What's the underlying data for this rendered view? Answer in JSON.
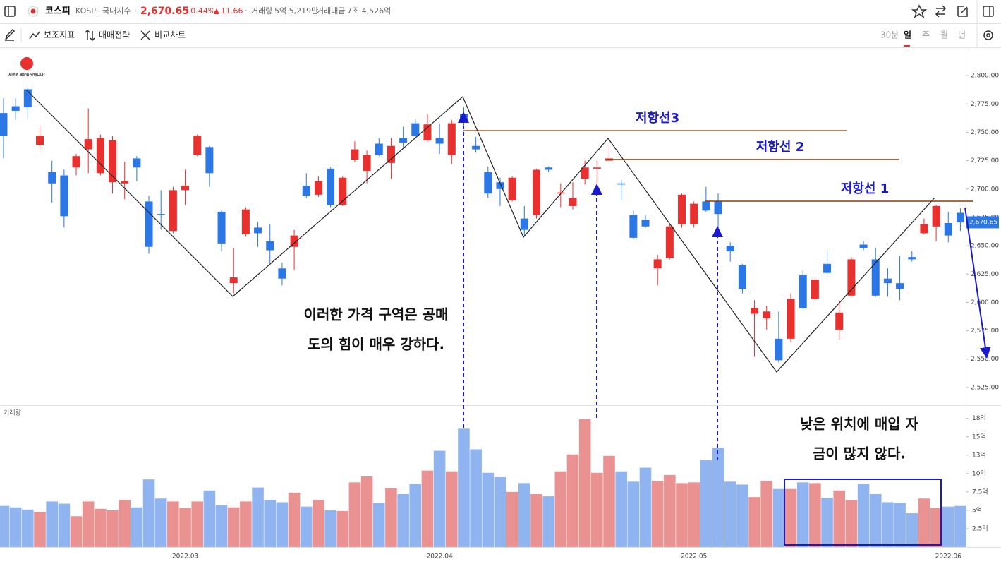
{
  "header": {
    "name": "코스피",
    "code": "KOSPI",
    "market": "국내지수",
    "price": "2,670.65",
    "change_pct": "+0.44%",
    "change": "11.66",
    "volume_label": "거래량",
    "volume": "5억 5,219만",
    "amount_label": "거래대금",
    "amount": "7조 4,526억"
  },
  "toolbar": {
    "tools": [
      "보조지표",
      "매매전략",
      "비교차트"
    ],
    "periods": [
      "30분",
      "일",
      "주",
      "월",
      "년"
    ],
    "active_period": 1
  },
  "logo": {
    "text": "새로운 세상을 만듭니다!"
  },
  "chart_data": {
    "type": "candlestick",
    "categories": [
      null,
      null,
      null,
      null,
      null,
      null,
      null,
      null,
      null,
      null,
      null,
      null,
      null,
      null,
      null,
      "2022.03",
      null,
      null,
      null,
      null,
      null,
      null,
      null,
      null,
      null,
      null,
      null,
      null,
      null,
      null,
      null,
      null,
      null,
      null,
      null,
      null,
      "2022.04",
      null,
      null,
      null,
      null,
      null,
      null,
      null,
      null,
      null,
      null,
      null,
      null,
      null,
      null,
      null,
      null,
      null,
      null,
      null,
      null,
      "2022.05",
      null,
      null,
      null,
      null,
      null,
      null,
      null,
      null,
      null,
      null,
      null,
      null,
      null,
      null,
      null,
      null,
      null,
      null,
      null,
      null,
      "2022.06",
      null
    ],
    "open": [
      2767,
      2773,
      2788,
      2739,
      2715,
      2712,
      2719,
      2735,
      2714,
      2706,
      2705,
      2727,
      2689,
      2678,
      2663,
      2699,
      2730,
      2737,
      2680,
      2617,
      2660,
      2666,
      2654,
      2630,
      2649,
      2703,
      2695,
      2718,
      2686,
      2726,
      2716,
      2740,
      2723,
      2745,
      2758,
      2743,
      2745,
      2730,
      2766,
      2738,
      2715,
      2706,
      2690,
      2674,
      2677,
      2719,
      2696,
      2685,
      2709,
      2718,
      2725,
      2705,
      2677,
      2673,
      2630,
      2639,
      2669,
      2669,
      2689,
      2689,
      2650,
      2633,
      2590,
      2586,
      2568,
      2568,
      2624,
      2603,
      2634,
      2576,
      2606,
      2651,
      2638,
      2621,
      2617,
      2640,
      2661,
      2667,
      2670,
      2679
    ],
    "high": [
      2780,
      2780,
      2795,
      2755,
      2725,
      2717,
      2731,
      2771,
      2748,
      2747,
      2724,
      2729,
      2694,
      2699,
      2702,
      2717,
      2748,
      2738,
      2681,
      2648,
      2684,
      2671,
      2669,
      2635,
      2664,
      2714,
      2711,
      2719,
      2711,
      2742,
      2734,
      2745,
      2745,
      2755,
      2762,
      2766,
      2758,
      2761,
      2772,
      2746,
      2720,
      2710,
      2711,
      2685,
      2718,
      2720,
      2705,
      2706,
      2725,
      2725,
      2738,
      2708,
      2681,
      2677,
      2642,
      2669,
      2696,
      2689,
      2702,
      2696,
      2653,
      2634,
      2602,
      2597,
      2592,
      2608,
      2628,
      2622,
      2645,
      2602,
      2640,
      2654,
      2648,
      2630,
      2641,
      2645,
      2674,
      2686,
      2680,
      2683
    ],
    "low": [
      2727,
      2761,
      2762,
      2734,
      2688,
      2666,
      2712,
      2714,
      2712,
      2696,
      2691,
      2707,
      2643,
      2664,
      2661,
      2686,
      2729,
      2702,
      2645,
      2608,
      2658,
      2649,
      2635,
      2615,
      2629,
      2692,
      2693,
      2684,
      2685,
      2724,
      2705,
      2729,
      2709,
      2736,
      2745,
      2742,
      2731,
      2722,
      2756,
      2732,
      2692,
      2685,
      2689,
      2659,
      2674,
      2715,
      2684,
      2682,
      2704,
      2703,
      2724,
      2690,
      2656,
      2666,
      2615,
      2638,
      2666,
      2666,
      2680,
      2665,
      2636,
      2608,
      2552,
      2576,
      2547,
      2565,
      2594,
      2602,
      2625,
      2567,
      2605,
      2646,
      2605,
      2605,
      2602,
      2636,
      2660,
      2654,
      2653,
      2663
    ],
    "close": [
      2747,
      2769,
      2772,
      2747,
      2705,
      2676,
      2729,
      2744,
      2745,
      2743,
      2707,
      2719,
      2649,
      2677,
      2699,
      2703,
      2747,
      2714,
      2652,
      2622,
      2682,
      2661,
      2646,
      2621,
      2659,
      2694,
      2707,
      2686,
      2710,
      2735,
      2730,
      2730,
      2738,
      2741,
      2747,
      2757,
      2740,
      2758,
      2759,
      2735,
      2696,
      2700,
      2710,
      2664,
      2717,
      2717,
      2697,
      2692,
      2719,
      2719,
      2727,
      2704,
      2657,
      2667,
      2638,
      2667,
      2695,
      2687,
      2681,
      2678,
      2645,
      2612,
      2595,
      2592,
      2549,
      2603,
      2595,
      2620,
      2626,
      2591,
      2638,
      2648,
      2606,
      2617,
      2612,
      2638,
      2669,
      2685,
      2659,
      2670.65
    ],
    "up_color": "#e8302f",
    "down_color": "#2a77e5",
    "ylim": [
      2510,
      2825
    ],
    "yticks": [
      {
        "value": 2525,
        "label": "2,525.00"
      },
      {
        "value": 2550,
        "label": "2,550.00"
      },
      {
        "value": 2575,
        "label": "2,575.00"
      },
      {
        "value": 2600,
        "label": "2,600.00"
      },
      {
        "value": 2625,
        "label": "2,625.00"
      },
      {
        "value": 2650,
        "label": "2,650.00"
      },
      {
        "value": 2675,
        "label": "2,675.00"
      },
      {
        "value": 2700,
        "label": "2,700.00"
      },
      {
        "value": 2725,
        "label": "2,725.00"
      },
      {
        "value": 2750,
        "label": "2,750.00"
      },
      {
        "value": 2775,
        "label": "2,775.00"
      },
      {
        "value": 2800,
        "label": "2,800.00"
      }
    ],
    "price_marker": {
      "value": 2670.65,
      "label": "2,670.65"
    },
    "series": [
      {
        "name": "거래량",
        "axis": "y2",
        "up_color": "#e99291",
        "down_color": "#8fb4ef",
        "values": [
          5.6,
          5.4,
          5.1,
          4.8,
          6.2,
          5.9,
          4.2,
          6.2,
          5.2,
          5.0,
          6.4,
          5.4,
          9.2,
          6.6,
          6.2,
          5.3,
          6.2,
          7.7,
          5.7,
          5.4,
          6.2,
          8.1,
          6.4,
          6.1,
          7.4,
          5.5,
          6.4,
          5.0,
          4.9,
          8.8,
          9.6,
          6.0,
          8.0,
          7.2,
          8.6,
          10.4,
          13.1,
          10.3,
          16.1,
          13.3,
          10.1,
          9.5,
          7.5,
          8.7,
          7.2,
          6.9,
          10.3,
          12.6,
          17.4,
          10.1,
          12.4,
          10.3,
          8.9,
          10.8,
          9.0,
          9.8,
          8.7,
          8.8,
          11.8,
          13.5,
          8.9,
          8.5,
          6.8,
          9.0,
          7.9,
          7.9,
          8.8,
          8.7,
          6.7,
          7.7,
          6.4,
          8.6,
          7.2,
          6.1,
          6.0,
          4.6,
          6.6,
          5.3,
          5.5,
          5.6
        ]
      }
    ],
    "y2lim": [
      0,
      19.2
    ],
    "y2ticks": [
      {
        "value": 2.5,
        "label": "2.5억"
      },
      {
        "value": 5,
        "label": "5억"
      },
      {
        "value": 7.5,
        "label": "7.5억"
      },
      {
        "value": 10,
        "label": "10억"
      },
      {
        "value": 12.5,
        "label": "13억"
      },
      {
        "value": 15,
        "label": "15억"
      },
      {
        "value": 17.5,
        "label": "18억"
      }
    ],
    "resistance_lines": [
      {
        "label": "저항선3",
        "value": 2751.5
      },
      {
        "label": "저항선 2",
        "value": 2726
      },
      {
        "label": "저항선 1",
        "value": 2689.3
      }
    ],
    "annotations": [
      [
        "이러한 가격 구역은 공매",
        "도의 힘이 매우 강하다."
      ],
      [
        "낮은 위치에 매입 자",
        "금이 많지 않다."
      ]
    ]
  }
}
